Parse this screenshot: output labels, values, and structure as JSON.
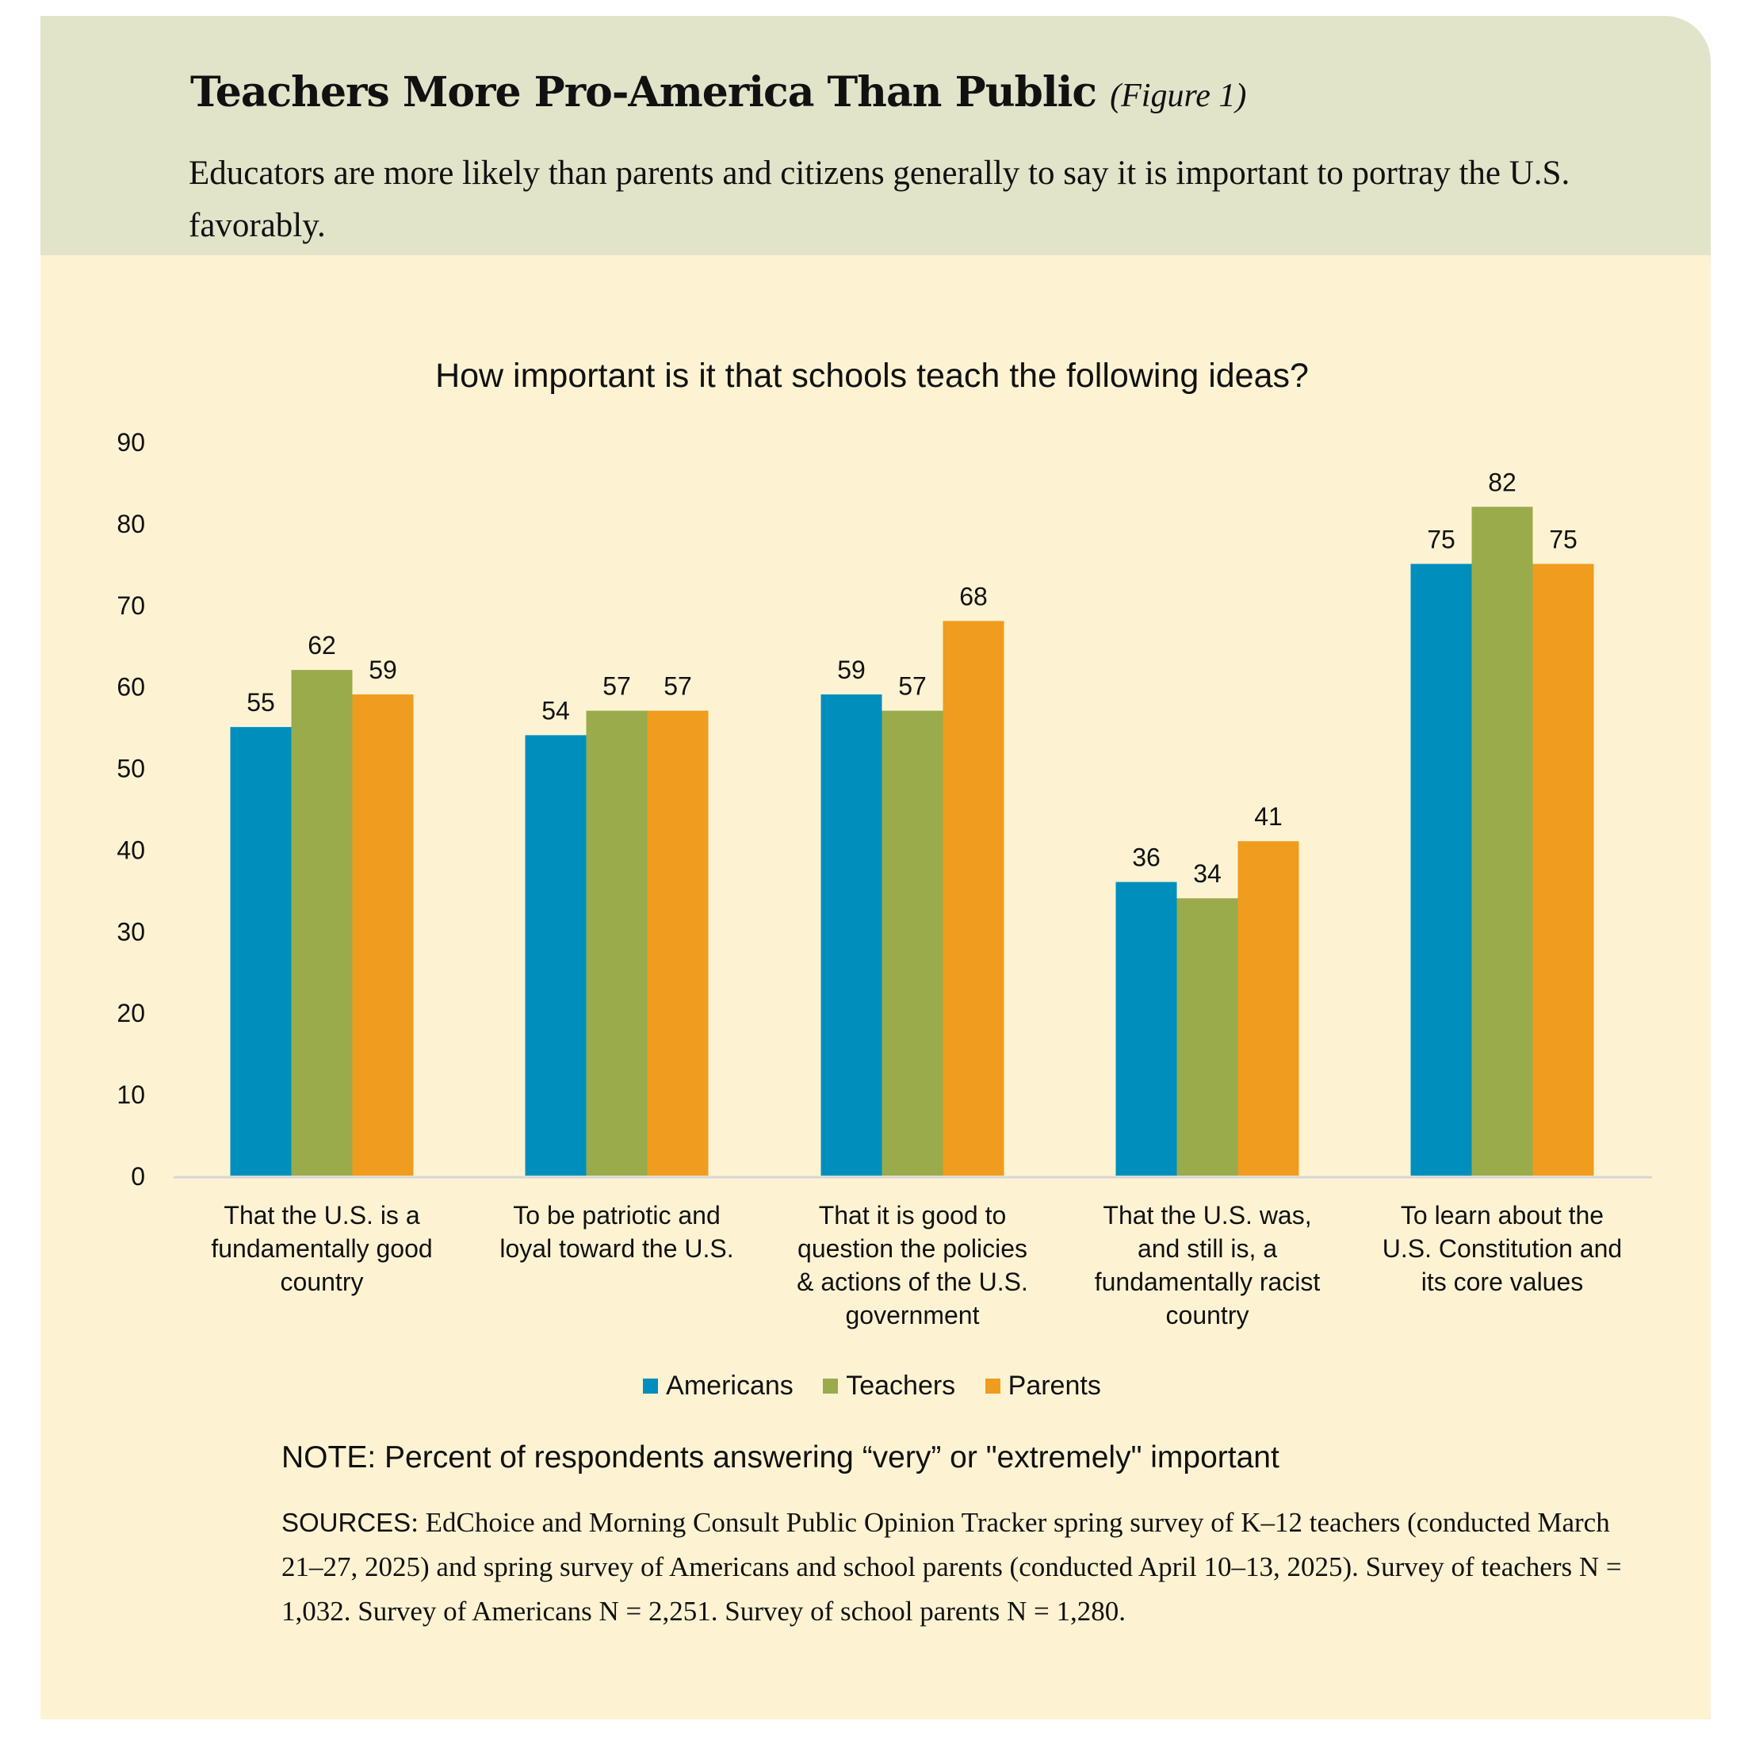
{
  "header": {
    "title": "Teachers More Pro-America Than Public",
    "figure_label": "(Figure 1)",
    "subtitle": "Educators are more likely than parents and citizens generally to say it is important to portray the U.S. favorably."
  },
  "colors": {
    "header_bg": "#e1e4c9",
    "panel_bg": "#fdf3d3",
    "Americans": "#008fbd",
    "Teachers": "#9aab4c",
    "Parents": "#f09c1e"
  },
  "chart_data": {
    "type": "bar",
    "title": "How important is it that schools teach the following ideas?",
    "categories": [
      "That the U.S. is a fundamentally good country",
      "To be patriotic and loyal toward the U.S.",
      "That it is good to question the policies & actions of the U.S. government",
      "That the U.S. was, and still is, a fundamentally racist country",
      "To learn about the U.S. Constitution and its core values"
    ],
    "category_lines": [
      [
        "That the U.S. is a",
        "fundamentally good",
        "country"
      ],
      [
        "To be patriotic and",
        "loyal toward the U.S."
      ],
      [
        "That it is good to",
        "question the policies",
        "& actions of the U.S.",
        "government"
      ],
      [
        "That the U.S. was,",
        "and still is, a",
        "fundamentally racist",
        "country"
      ],
      [
        "To learn about the",
        "U.S. Constitution and",
        "its core values"
      ]
    ],
    "series": [
      {
        "name": "Americans",
        "color": "#008fbd",
        "values": [
          55,
          54,
          59,
          36,
          75
        ]
      },
      {
        "name": "Teachers",
        "color": "#9aab4c",
        "values": [
          62,
          57,
          57,
          34,
          82
        ]
      },
      {
        "name": "Parents",
        "color": "#f09c1e",
        "values": [
          59,
          57,
          68,
          41,
          75
        ]
      }
    ],
    "ylim": [
      0,
      90
    ],
    "yticks": [
      0,
      10,
      20,
      30,
      40,
      50,
      60,
      70,
      80,
      90
    ],
    "grid": false,
    "data_labels": true,
    "legend_placement": "bottom"
  },
  "footer": {
    "note": "NOTE: Percent of respondents answering “very” or \"extremely\" important",
    "sources_label": "SOURCES",
    "sources_text": ": EdChoice and Morning Consult Public Opinion Tracker spring survey of K–12 teachers (conducted March 21–27, 2025) and spring survey of Americans and school parents (conducted April 10–13, 2025). Survey of teachers N = 1,032. Survey of Americans N = 2,251. Survey of school parents N = 1,280."
  }
}
